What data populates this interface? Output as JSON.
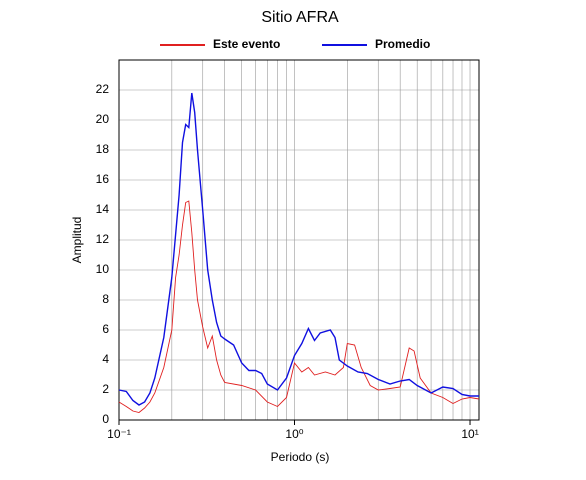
{
  "chart_data": {
    "type": "line",
    "title": "Sitio AFRA",
    "x_label": "Periodo (s)",
    "y_label": "Amplitud",
    "log_x": true,
    "grid": true,
    "xlim": [
      0.1,
      11.25
    ],
    "ylim": [
      0,
      24
    ],
    "xticks": [
      {
        "value": 0.1,
        "label": "10⁻¹"
      },
      {
        "value": 1,
        "label": "10⁰"
      },
      {
        "value": 10,
        "label": "10¹"
      }
    ],
    "xminorticks": [
      0.2,
      0.3,
      0.4,
      0.5,
      0.6,
      0.7,
      0.8,
      0.9,
      2,
      3,
      4,
      5,
      6,
      7,
      8,
      9
    ],
    "yticks": [
      0,
      2,
      4,
      6,
      8,
      10,
      12,
      14,
      16,
      18,
      20,
      22
    ],
    "series": [
      {
        "name": "Este evento",
        "color": "#e02020",
        "x": [
          0.1,
          0.11,
          0.12,
          0.13,
          0.14,
          0.15,
          0.16,
          0.18,
          0.2,
          0.21,
          0.22,
          0.23,
          0.24,
          0.25,
          0.26,
          0.27,
          0.28,
          0.3,
          0.32,
          0.34,
          0.36,
          0.38,
          0.4,
          0.5,
          0.6,
          0.7,
          0.8,
          0.9,
          1.0,
          1.1,
          1.2,
          1.3,
          1.5,
          1.7,
          1.9,
          2.0,
          2.2,
          2.4,
          2.7,
          3,
          3.5,
          4,
          4.5,
          4.8,
          5.2,
          6,
          7,
          8,
          9,
          10,
          11.25
        ],
        "values": [
          1.2,
          0.9,
          0.6,
          0.5,
          0.8,
          1.2,
          1.8,
          3.5,
          6.0,
          9.5,
          11,
          13,
          14.5,
          14.6,
          12.5,
          10,
          8,
          6.2,
          4.8,
          5.6,
          4.0,
          3.0,
          2.5,
          2.3,
          2.0,
          1.2,
          0.9,
          1.5,
          3.8,
          3.2,
          3.5,
          3.0,
          3.2,
          3.0,
          3.5,
          5.1,
          5.0,
          3.5,
          2.3,
          2.0,
          2.1,
          2.2,
          4.8,
          4.6,
          2.8,
          1.8,
          1.5,
          1.1,
          1.4,
          1.5,
          1.4
        ]
      },
      {
        "name": "Promedio",
        "color": "#1010e0",
        "x": [
          0.1,
          0.11,
          0.12,
          0.13,
          0.14,
          0.15,
          0.16,
          0.18,
          0.2,
          0.22,
          0.23,
          0.24,
          0.25,
          0.26,
          0.27,
          0.28,
          0.3,
          0.32,
          0.34,
          0.36,
          0.38,
          0.4,
          0.45,
          0.5,
          0.55,
          0.6,
          0.65,
          0.7,
          0.8,
          0.9,
          1.0,
          1.1,
          1.2,
          1.3,
          1.4,
          1.6,
          1.7,
          1.8,
          2.0,
          2.3,
          2.6,
          3,
          3.5,
          4,
          4.5,
          5,
          6,
          7,
          8,
          9,
          10,
          11.25
        ],
        "values": [
          2.0,
          1.9,
          1.3,
          1.0,
          1.2,
          1.8,
          2.8,
          5.5,
          9.5,
          15,
          18.5,
          19.7,
          19.5,
          21.8,
          20.5,
          18,
          14,
          10,
          8,
          6.5,
          5.6,
          5.4,
          5.0,
          3.8,
          3.3,
          3.3,
          3.1,
          2.4,
          2.0,
          2.8,
          4.3,
          5.1,
          6.1,
          5.3,
          5.8,
          6.0,
          5.5,
          4.0,
          3.6,
          3.2,
          3.1,
          2.7,
          2.4,
          2.6,
          2.7,
          2.3,
          1.8,
          2.2,
          2.1,
          1.7,
          1.6,
          1.6
        ]
      }
    ]
  }
}
